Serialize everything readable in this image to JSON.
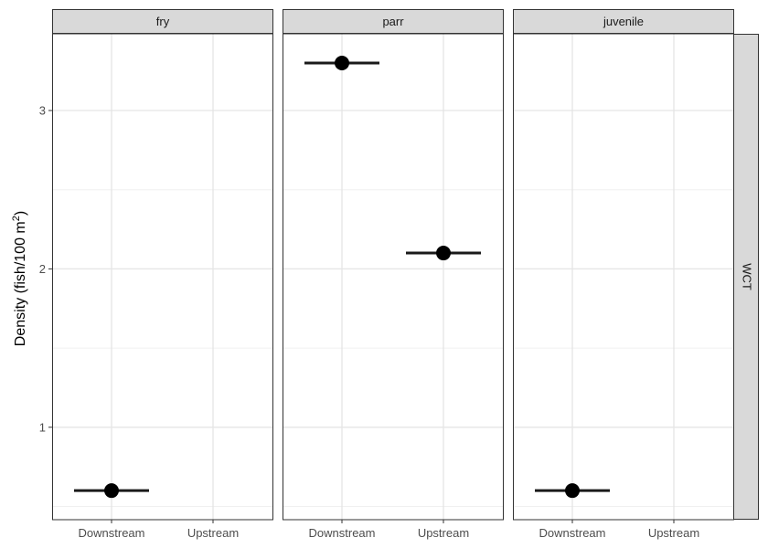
{
  "chart_data": {
    "type": "scatter",
    "title": "",
    "ylabel": "Density (fish/100 m²)",
    "ylabel_parts": {
      "prefix": "Density (fish/100 m",
      "sup": "2",
      "suffix": ")"
    },
    "xlabel": "",
    "categories": [
      "Downstream",
      "Upstream"
    ],
    "yticks": [
      1,
      2,
      3
    ],
    "ylim": [
      0.42,
      3.48
    ],
    "grid": true,
    "row_strip": "WCT",
    "facets": [
      {
        "name": "fry",
        "points": [
          {
            "x": "Downstream",
            "y": 0.6,
            "xmin": "Downstream-",
            "ymin": 0.6
          }
        ]
      },
      {
        "name": "parr",
        "points": [
          {
            "x": "Downstream",
            "y": 3.3
          },
          {
            "x": "Upstream",
            "y": 2.1
          }
        ]
      },
      {
        "name": "juvenile",
        "points": [
          {
            "x": "Downstream",
            "y": 0.6
          }
        ]
      }
    ]
  }
}
